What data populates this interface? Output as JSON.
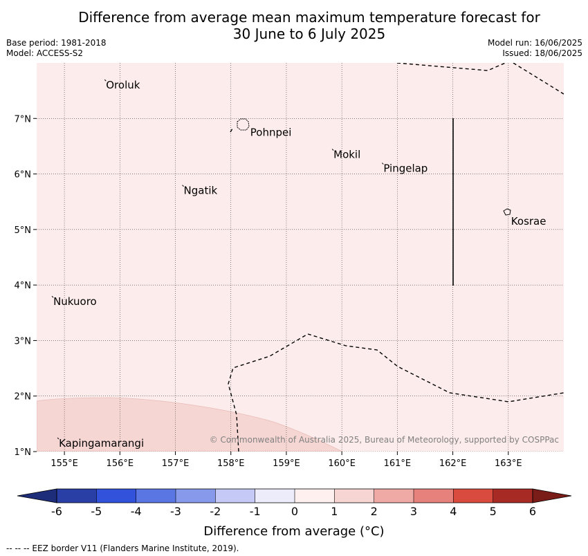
{
  "title": {
    "line1": "Difference from average mean maximum temperature forecast for",
    "line2": "30 June to 6 July 2025"
  },
  "meta": {
    "base_period": "Base period: 1981-2018",
    "model": "Model: ACCESS-S2",
    "model_run": "Model run: 16/06/2025",
    "issued": "Issued: 18/06/2025"
  },
  "map": {
    "extent": {
      "lon": [
        154.5,
        164.0
      ],
      "lat": [
        1.0,
        8.0
      ]
    },
    "x_ticks": [
      {
        "lon": 155,
        "label": "155°E"
      },
      {
        "lon": 156,
        "label": "156°E"
      },
      {
        "lon": 157,
        "label": "157°E"
      },
      {
        "lon": 158,
        "label": "158°E"
      },
      {
        "lon": 159,
        "label": "159°E"
      },
      {
        "lon": 160,
        "label": "160°E"
      },
      {
        "lon": 161,
        "label": "161°E"
      },
      {
        "lon": 162,
        "label": "162°E"
      },
      {
        "lon": 163,
        "label": "163°E"
      }
    ],
    "y_ticks": [
      {
        "lat": 1,
        "label": "1°N"
      },
      {
        "lat": 2,
        "label": "2°N"
      },
      {
        "lat": 3,
        "label": "3°N"
      },
      {
        "lat": 4,
        "label": "4°N"
      },
      {
        "lat": 5,
        "label": "5°N"
      },
      {
        "lat": 6,
        "label": "6°N"
      },
      {
        "lat": 7,
        "label": "7°N"
      }
    ],
    "places": [
      {
        "name": "Oroluk",
        "lon": 155.75,
        "lat": 7.6
      },
      {
        "name": "Pohnpei",
        "lon": 158.35,
        "lat": 6.75
      },
      {
        "name": "Mokil",
        "lon": 159.85,
        "lat": 6.35
      },
      {
        "name": "Pingelap",
        "lon": 160.75,
        "lat": 6.1
      },
      {
        "name": "Ngatik",
        "lon": 157.15,
        "lat": 5.7
      },
      {
        "name": "Kosrae",
        "lon": 163.05,
        "lat": 5.15
      },
      {
        "name": "Nukuoro",
        "lon": 154.8,
        "lat": 3.7
      },
      {
        "name": "Kapingamarangi",
        "lon": 154.9,
        "lat": 1.15
      }
    ],
    "background_category": "0 to 1",
    "background_color": "#fceceb",
    "anomaly_region_category": "1 to 2",
    "anomaly_region_color": "#f5d6d3",
    "copyright": "© Commonwealth of Australia 2025, Bureau of Meteorology, supported by COSPPac"
  },
  "colorbar": {
    "ticks": [
      "-6",
      "-5",
      "-4",
      "-3",
      "-2",
      "-1",
      "0",
      "1",
      "2",
      "3",
      "4",
      "5",
      "6"
    ],
    "colors": [
      "#2a3fa6",
      "#3352dc",
      "#5a76e2",
      "#8799ea",
      "#c4caf5",
      "#ececfb",
      "#fdf0ef",
      "#f6d5d2",
      "#efaaa6",
      "#e6827b",
      "#da4b3f",
      "#a82a24"
    ],
    "under_color": "#1d2d7a",
    "over_color": "#7a1c18",
    "label": "Difference from average (°C)"
  },
  "footer": "--  --  -- EEZ border V11 (Flanders Marine Institute, 2019)."
}
